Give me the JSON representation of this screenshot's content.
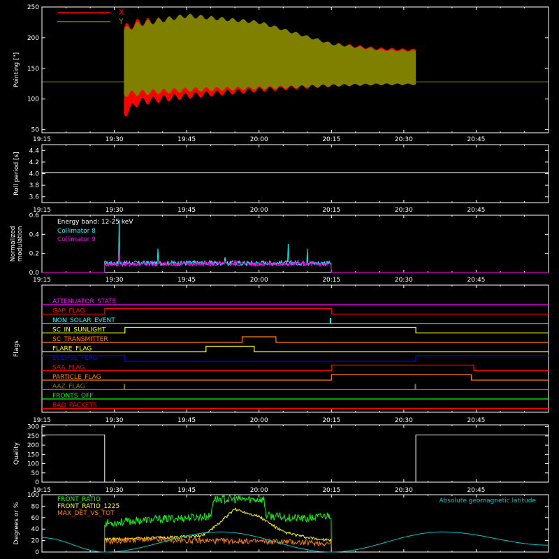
{
  "x_ticks": [
    "19:15",
    "19:30",
    "19:45",
    "20:00",
    "20:15",
    "20:30",
    "20:45"
  ],
  "x_ticks_minutes": [
    0,
    15,
    30,
    45,
    60,
    75,
    90
  ],
  "x_range_minutes": [
    0,
    105
  ],
  "panels_with_x_labels": [
    "pointing",
    "roll",
    "modulation",
    "flags",
    "quality"
  ],
  "colors": {
    "background": "#000000",
    "axes": "#ffffff",
    "x": "#ff0000",
    "y": "#808000",
    "collimator8": "#00ffff",
    "collimator9": "#ff00ff",
    "front_ratio": "#00ff00",
    "front_ratio_1225": "#ffff00",
    "max_det_vs_tot": "#ff8000",
    "geomag": "#00c8c8"
  },
  "chart_data": [
    {
      "id": "pointing",
      "type": "area",
      "ylabel": "Pointing [\"]",
      "ylim": [
        45,
        250
      ],
      "yticks": [
        50,
        100,
        150,
        200,
        250
      ],
      "legend": [
        "X",
        "Y"
      ],
      "legend_placement": "top-left",
      "baseline": 128,
      "active_minutes": [
        17,
        77.5
      ],
      "series": [
        {
          "name": "X",
          "color": "#ff0000",
          "envelope_minutes": [
            17,
            20,
            30,
            45,
            60,
            70,
            77.5
          ],
          "lower": [
            75,
            95,
            105,
            115,
            122,
            125,
            126
          ],
          "upper": [
            215,
            225,
            230,
            210,
            190,
            182,
            180
          ]
        },
        {
          "name": "Y",
          "color": "#808000",
          "envelope_minutes": [
            17,
            20,
            30,
            45,
            60,
            70,
            77.5
          ],
          "lower": [
            108,
            110,
            115,
            118,
            122,
            124,
            124
          ],
          "upper": [
            212,
            222,
            236,
            225,
            190,
            180,
            178
          ]
        }
      ]
    },
    {
      "id": "roll",
      "type": "line",
      "ylabel": "Roll period [s]",
      "ylim": [
        3.5,
        4.5
      ],
      "yticks": [
        3.6,
        3.8,
        4.0,
        4.2,
        4.4
      ],
      "series": [
        {
          "name": "",
          "x": [
            0,
            105
          ],
          "values": [
            4.02,
            4.02
          ]
        }
      ]
    },
    {
      "id": "modulation",
      "type": "line",
      "ylabel_lines": [
        "Normalized",
        "modulation"
      ],
      "ylim": [
        0,
        0.6
      ],
      "yticks": [
        0.0,
        0.2,
        0.4,
        0.6
      ],
      "annotation": "Energy band: 12-25 keV",
      "legend": [
        "Collimator 8",
        "Collimator 9"
      ],
      "active_minutes": [
        13,
        60
      ],
      "series": [
        {
          "name": "Collimator 8",
          "color": "#00ffff",
          "typical": 0.1,
          "spike_minutes": [
            16,
            24,
            38,
            51,
            55
          ],
          "spike_values": [
            0.55,
            0.25,
            0.16,
            0.3,
            0.25
          ]
        },
        {
          "name": "Collimator 9",
          "color": "#ff00ff",
          "typical": 0.09,
          "spike_minutes": [
            16,
            40
          ],
          "spike_values": [
            0.2,
            0.13
          ]
        }
      ]
    },
    {
      "id": "flags",
      "type": "line",
      "ylabel": "Flags",
      "flags": [
        {
          "name": "ATTENUATOR_STATE",
          "color": "#ff00ff",
          "steps": [
            [
              0,
              0
            ]
          ]
        },
        {
          "name": "GAP_FLAG",
          "color": "#ff0000",
          "steps": [
            [
              0,
              0
            ],
            [
              13,
              1
            ],
            [
              60,
              0
            ]
          ]
        },
        {
          "name": "NON_SOLAR_EVENT",
          "color": "#00ffff",
          "steps": [
            [
              0,
              0
            ]
          ],
          "pulse_minutes": [
            59.8
          ]
        },
        {
          "name": "SC_IN_SUNLIGHT",
          "color": "#ffff00",
          "steps": [
            [
              0,
              0
            ],
            [
              17.2,
              1
            ],
            [
              77.5,
              0
            ]
          ]
        },
        {
          "name": "SC_TRANSMITTER",
          "color": "#ff8000",
          "steps": [
            [
              0,
              0
            ],
            [
              41.5,
              1
            ],
            [
              48.5,
              0
            ]
          ]
        },
        {
          "name": "FLARE_FLAG",
          "color": "#ffff00",
          "steps": [
            [
              0,
              0
            ],
            [
              34,
              1
            ],
            [
              44,
              0
            ]
          ]
        },
        {
          "name": "ECLIPSE_FLAG",
          "color": "#0000ff",
          "steps": [
            [
              0,
              1
            ],
            [
              17.2,
              0
            ],
            [
              77.5,
              1
            ]
          ]
        },
        {
          "name": "SAA_FLAG",
          "color": "#ff0000",
          "steps": [
            [
              0,
              0
            ],
            [
              60,
              1
            ],
            [
              89.5,
              0
            ]
          ]
        },
        {
          "name": "PARTICLE_FLAG",
          "color": "#ff8000",
          "steps": [
            [
              0,
              0
            ],
            [
              60,
              1
            ],
            [
              89,
              0
            ]
          ]
        },
        {
          "name": "AAZ_FLAG",
          "color": "#808000",
          "steps": [
            [
              0,
              0
            ]
          ],
          "pulse_minutes": [
            17.1,
            77.4
          ]
        },
        {
          "name": "FRONTS_OFF",
          "color": "#00ff00",
          "steps": [
            [
              0,
              0
            ]
          ]
        },
        {
          "name": "BAD_PACKETS",
          "color": "#ff0000",
          "steps": [
            [
              0,
              0
            ]
          ]
        }
      ]
    },
    {
      "id": "quality",
      "type": "line",
      "ylabel": "Quality",
      "ylim": [
        0,
        310
      ],
      "yticks": [
        0,
        50,
        100,
        150,
        200,
        250,
        300
      ],
      "series": [
        {
          "name": "",
          "x": [
            0,
            13,
            13,
            77.5,
            77.5,
            105
          ],
          "values": [
            255,
            255,
            0,
            0,
            255,
            255
          ]
        }
      ]
    },
    {
      "id": "ratios",
      "type": "line",
      "ylabel": "Degrees or %",
      "ylim": [
        0,
        100
      ],
      "yticks": [
        0,
        20,
        40,
        60,
        80,
        100
      ],
      "legend": [
        "FRONT_RATIO",
        "FRONT_RATIO_1225",
        "MAX_DET_VS_TOT"
      ],
      "right_label": "Absolute geomagnetic latitude",
      "active_minutes": [
        13,
        60
      ],
      "series": [
        {
          "name": "FRONT_RATIO",
          "color": "#00ff00",
          "x": [
            13,
            20,
            30,
            35,
            35.5,
            46,
            46.5,
            55,
            60
          ],
          "values": [
            50,
            55,
            60,
            62,
            92,
            92,
            63,
            58,
            65
          ]
        },
        {
          "name": "FRONT_RATIO_1225",
          "color": "#ffff00",
          "x": [
            13,
            25,
            33,
            36,
            40,
            45,
            50,
            55,
            60
          ],
          "values": [
            22,
            25,
            28,
            45,
            75,
            62,
            35,
            25,
            20
          ]
        },
        {
          "name": "MAX_DET_VS_TOT",
          "color": "#ff8000",
          "x": [
            13,
            20,
            30,
            40,
            50,
            60
          ],
          "values": [
            18,
            22,
            20,
            19,
            18,
            15
          ]
        },
        {
          "name": "Absolute geomagnetic latitude",
          "color": "#00c8c8",
          "x": [
            0,
            13,
            37,
            60,
            83,
            105
          ],
          "values": [
            25,
            0,
            35,
            0,
            35,
            12
          ]
        }
      ]
    }
  ]
}
